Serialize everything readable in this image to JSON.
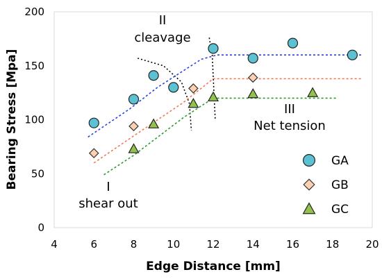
{
  "chart_data": {
    "type": "scatter",
    "title": "",
    "xlabel": "Edge Distance [mm]",
    "ylabel": "Bearing Stress [Mpa]",
    "xlim": [
      4,
      20
    ],
    "ylim": [
      0,
      200
    ],
    "xticks": [
      "4",
      "6",
      "8",
      "10",
      "12",
      "14",
      "16",
      "18",
      "20"
    ],
    "yticks": [
      "0",
      "50",
      "100",
      "150",
      "200"
    ],
    "grid": false,
    "legend_position": "bottom-right",
    "series": [
      {
        "name": "GA",
        "marker": "circle",
        "color": "#5bc1d3",
        "line_color": "#2b3fe0",
        "x": [
          6,
          8,
          9,
          10,
          12,
          14,
          16,
          19
        ],
        "y": [
          97,
          119,
          141,
          130,
          166,
          157,
          171,
          160
        ],
        "trend": {
          "x": [
            5.7,
            7.8,
            9.2,
            11.4,
            12.2,
            19.5
          ],
          "y": [
            84,
            110,
            130,
            156,
            160,
            160
          ]
        }
      },
      {
        "name": "GB",
        "marker": "diamond",
        "color": "#fdd0b2",
        "line_color": "#f07850",
        "x": [
          6,
          8,
          11,
          14
        ],
        "y": [
          69,
          94,
          129,
          139
        ],
        "trend": {
          "x": [
            6.0,
            8.0,
            10.5,
            12.0,
            19.5
          ],
          "y": [
            60,
            85,
            116,
            138,
            138
          ]
        }
      },
      {
        "name": "GC",
        "marker": "triangle",
        "color": "#92c24c",
        "line_color": "#2a9a2a",
        "x": [
          8,
          9,
          11,
          12,
          14,
          17
        ],
        "y": [
          73,
          96,
          115,
          121,
          124,
          125
        ],
        "trend": {
          "x": [
            6.5,
            8.0,
            10.5,
            12.0,
            18.2
          ],
          "y": [
            49,
            67,
            102,
            120,
            120
          ]
        }
      }
    ],
    "boundaries": [
      {
        "x": [
          8.2,
          9.5,
          10.4,
          10.8,
          10.9
        ],
        "y": [
          157,
          150,
          135,
          115,
          90
        ]
      },
      {
        "x": [
          11.8,
          11.95,
          12.0,
          12.05,
          12.1
        ],
        "y": [
          176,
          160,
          140,
          120,
          100
        ]
      }
    ],
    "annotations": [
      {
        "numeral": "I",
        "label": "shear out"
      },
      {
        "numeral": "II",
        "label": "cleavage"
      },
      {
        "numeral": "III",
        "label": "Net tension"
      }
    ]
  }
}
